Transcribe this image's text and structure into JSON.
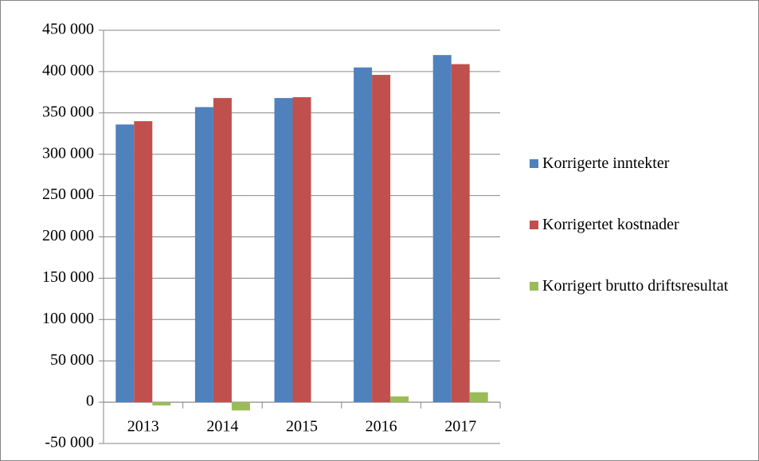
{
  "chart_data": {
    "type": "bar",
    "categories": [
      "2013",
      "2014",
      "2015",
      "2016",
      "2017"
    ],
    "series": [
      {
        "name": "Korrigerte inntekter",
        "color": "#4f81bd",
        "values": [
          336000,
          357000,
          368000,
          405000,
          420000
        ]
      },
      {
        "name": "Korrigertet kostnader",
        "color": "#c0504d",
        "values": [
          340000,
          368000,
          369000,
          396000,
          409000
        ]
      },
      {
        "name": "Korrigert brutto driftsresultat",
        "color": "#9bbb59",
        "values": [
          -4000,
          -10000,
          0,
          7000,
          12000
        ]
      }
    ],
    "ylim": [
      -50000,
      450000
    ],
    "yticks": [
      {
        "value": -50000,
        "label": "-50 000"
      },
      0,
      {
        "value": 50000,
        "label": "50 000"
      },
      {
        "value": 100000,
        "label": "100 000"
      },
      {
        "value": 150000,
        "label": "150 000"
      },
      {
        "value": 200000,
        "label": "200 000"
      },
      {
        "value": 250000,
        "label": "250 000"
      },
      {
        "value": 300000,
        "label": "300 000"
      },
      {
        "value": 350000,
        "label": "350 000"
      },
      {
        "value": 400000,
        "label": "400 000"
      },
      {
        "value": 450000,
        "label": "450 000"
      }
    ],
    "grid": true,
    "legend": "right"
  }
}
